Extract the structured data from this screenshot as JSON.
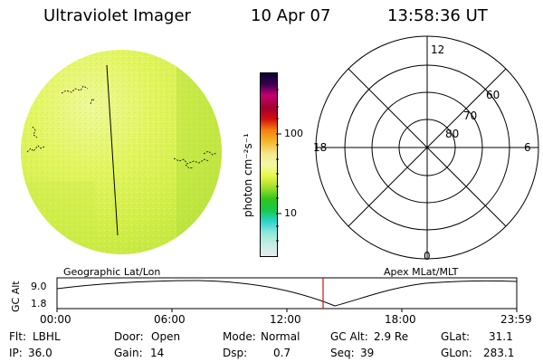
{
  "header": {
    "title": "Ultraviolet Imager",
    "date": "10 Apr 07",
    "time": "13:58:36 UT"
  },
  "colorbar": {
    "label": "photon cm⁻²s⁻¹",
    "ticks": [
      "100",
      "10"
    ],
    "scale": "log",
    "colors": [
      "#e8eaea",
      "#c9ede5",
      "#8fe6d9",
      "#29d4cf",
      "#16c94d",
      "#2ec51c",
      "#a8e02a",
      "#eaf74a",
      "#f1f8a7",
      "#f3e98a",
      "#f4b425",
      "#f57e0f",
      "#d30f0f",
      "#a00030",
      "#c4006e",
      "#3b0052",
      "#0a0030"
    ]
  },
  "polar": {
    "labels": {
      "top": "12",
      "left": "18",
      "right": "6",
      "bottom": "0"
    },
    "rings": [
      "60",
      "70",
      "80"
    ]
  },
  "altitude_plot": {
    "left_title": "Geographic Lat/Lon",
    "right_title": "Apex MLat/MLT",
    "ylabel": "GC Alt",
    "yticks": [
      "9.0",
      "1.8"
    ],
    "xticks": [
      "00:00",
      "06:00",
      "12:00",
      "18:00",
      "23:59"
    ],
    "marker_color": "#d01010"
  },
  "status": {
    "row1": [
      {
        "label": "Flt:",
        "value": "LBHL"
      },
      {
        "label": "Door:",
        "value": "Open"
      },
      {
        "label": "Mode:",
        "value": "Normal"
      },
      {
        "label": "GC Alt:",
        "value": "2.9 Re"
      },
      {
        "label": "GLat:",
        "value": "31.1"
      }
    ],
    "row2": [
      {
        "label": "IP:",
        "value": "36.0"
      },
      {
        "label": "Gain:",
        "value": "14"
      },
      {
        "label": "Dsp:",
        "value": "0.7"
      },
      {
        "label": "Seq:",
        "value": "39"
      },
      {
        "label": "GLon:",
        "value": "283.1"
      }
    ]
  }
}
